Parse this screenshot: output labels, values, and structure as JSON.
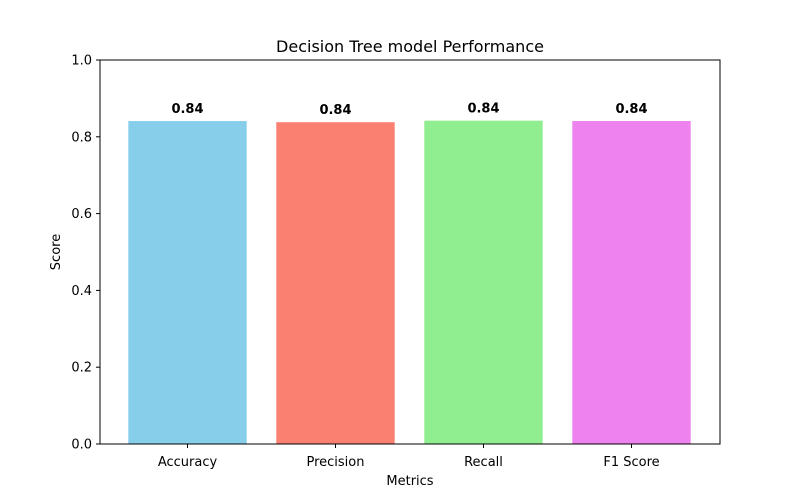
{
  "chart_data": {
    "type": "bar",
    "title": "Decision Tree model Performance",
    "xlabel": "Metrics",
    "ylabel": "Score",
    "categories": [
      "Accuracy",
      "Precision",
      "Recall",
      "F1 Score"
    ],
    "values": [
      0.841,
      0.838,
      0.842,
      0.841
    ],
    "value_labels": [
      "0.84",
      "0.84",
      "0.84",
      "0.84"
    ],
    "colors": [
      "#87CEEB",
      "#FA8072",
      "#90EE90",
      "#EE82EE"
    ],
    "ylim": [
      0,
      1
    ],
    "yticks": [
      0.0,
      0.2,
      0.4,
      0.6,
      0.8,
      1.0
    ],
    "ytick_labels": [
      "0.0",
      "0.2",
      "0.4",
      "0.6",
      "0.8",
      "1.0"
    ],
    "grid": false,
    "legend": "none"
  }
}
